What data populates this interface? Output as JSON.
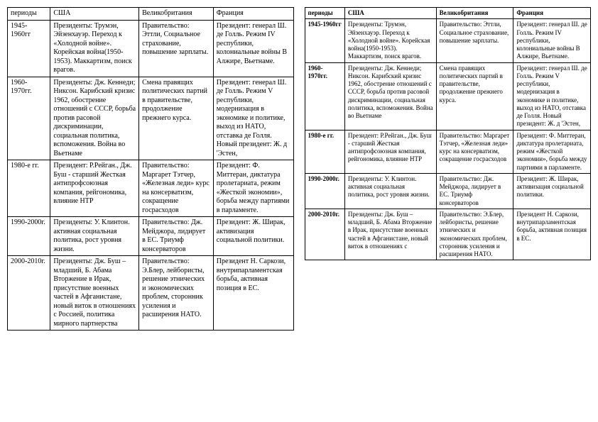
{
  "left": {
    "columns": [
      "периоды",
      "США",
      "Великобритания",
      "Франция"
    ],
    "rows": [
      {
        "period": "  1945-1960гг",
        "usa": "Президенты: Трумэн, Эйзенхауэр. Переход к «Холодной войне». Корейская война(1950-1953). Маккартизм, поиск врагов.",
        "uk": "Правительство: Эттли, Социальное страхование, повышение зарплаты.",
        "fr": "Президент: генерал Ш. де Голль. Режим IV республики, колониальные войны В Алжире, Вьетнаме."
      },
      {
        "period": "1960-1970гг.",
        "usa": "Президенты: Дж. Кеннеди; Никсон. Карибский кризис 1962, обострение отношений с СССР, борьба против расовой дискриминации, социальная политика, вспоможения. Война во Вьетнаме",
        "uk": "Смена правящих политических партий в правительстве, продолжение прежнего курса.",
        "fr": "Президент: генерал Ш. де Голль. Режим V республики, модернизация в экономике и политике, выход из НАТО, отставка де Голля. Новый президент: Ж. д 'Эстен,"
      },
      {
        "period": "1980-е гг.",
        "usa": "Президент: Р.Рейган., Дж. Буш - старший Жесткая антипрофсоюзная компания, рейгономика, влияние НТР",
        "uk": "Правительство: Маргарет Тэтчер, «Железная леди» курс на консерватизм, сокращение госрасходов",
        "fr": "Президент: Ф. Миттеран, диктатура пролетариата,  режим «Жесткой экономии», борьба между партиями в парламенте."
      },
      {
        "period": "1990-2000г.",
        "usa": "Президенты: У. Клинтон. активная социальная политика, рост уровня жизни.",
        "uk": "Правительство: Дж. Мейджора, лидирует в ЕС. Триумф консерваторов",
        "fr": "Президент: Ж. Ширак, активизация социальной политики."
      },
      {
        "period": "2000-2010г.",
        "usa": "Президенты: Дж. Буш – младший, Б. Абама Вторжение в Ирак, присутствие военных частей в Афганистане, новый виток в отношениях с Россией, политика мирного партнерства",
        "uk": "Правительство: Э.Блер, лейбористы, решение этнических и экономических проблем, сторонник усиления и расширения НАТО.",
        "fr": "Президент Н. Саркози, внутрипарламентская борьба, активная позиция в ЕС."
      }
    ]
  },
  "right": {
    "columns": [
      "периоды",
      "США",
      "Великобритания",
      "Франция"
    ],
    "rows": [
      {
        "period": "1945-1960гг",
        "usa": "Президенты: Трумэн, Эйзенхауэр. Переход к «Холодной войне». Корейская война(1950-1953). Маккартизм, поиск врагов.",
        "uk": "Правительство: Эттли, Социальное страхование, повышение зарплаты.",
        "fr": "Президент: генерал Ш. де Голль. Режим IV республики, колониальные войны В Алжире, Вьетнаме."
      },
      {
        "period": "1960-1970гг.",
        "usa": "Президенты: Дж. Кеннеди; Никсон. Карибский кризис 1962, обострение отношений с СССР, борьба против расовой дискриминации, социальная политика, вспоможения. Война во Вьетнаме",
        "uk": "Смена правящих политических партий в правительстве, продолжение прежнего курса.",
        "fr": "Президент: генерал Ш. де Голль. Режим V республики, модернизация в экономике и политике, выход из НАТО, отставка де Голля. Новый президент: Ж. д 'Эстен,"
      },
      {
        "period": "1980-е гг.",
        "usa": "Президент: Р.Рейган., Дж. Буш - старший Жесткая антипрофсоюзная компания, рейгономика, влияние НТР",
        "uk": "Правительство: Маргарет Тэтчер, «Железная леди» курс на консерватизм, сокращение госрасходов",
        "fr": "Президент: Ф. Миттеран, диктатура пролетариата,  режим «Жесткой экономии», борьба между партиями в парламенте."
      },
      {
        "period": "1990-2000г.",
        "usa": "Президенты: У. Клинтон. активная социальная политика, рост уровня жизни.",
        "uk": "Правительство: Дж. Мейджора, лидирует в ЕС. Триумф консерваторов",
        "fr": "Президент: Ж. Ширак, активизация социальной политики."
      },
      {
        "period": "2000-2010г.",
        "usa": "Президенты: Дж. Буш – младший, Б. Абама Вторжение в Ирак, присутствие военных частей в Афганистане, новый виток в отношениях с",
        "uk": "Правительство: Э.Блер, лейбористы, решение этнических и экономических проблем, сторонник усиления и расширения НАТО.",
        "fr": "Президент Н. Саркози, внутрипарламентская борьба, активная позиция в ЕС."
      }
    ]
  }
}
